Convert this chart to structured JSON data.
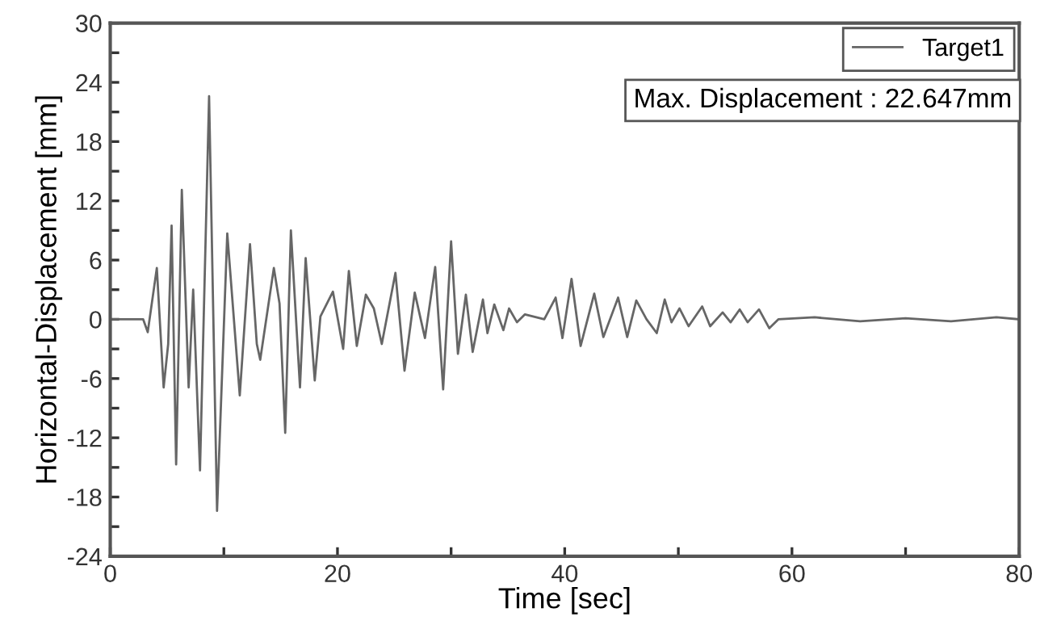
{
  "chart_data": {
    "type": "line",
    "xlabel": "Time [sec]",
    "ylabel": "Horizontal-Displacement [mm]",
    "xlim": [
      0,
      80
    ],
    "ylim": [
      -24,
      30
    ],
    "xticks": [
      0,
      {
        "value": 10,
        "label": null
      },
      20,
      {
        "value": 30,
        "label": null
      },
      40,
      {
        "value": 50,
        "label": null
      },
      60,
      {
        "value": 70,
        "label": null
      },
      80
    ],
    "yticks": [
      -24,
      {
        "value": -21,
        "label": null
      },
      -18,
      {
        "value": -15,
        "label": null
      },
      -12,
      {
        "value": -9,
        "label": null
      },
      -6,
      {
        "value": -3,
        "label": null
      },
      0,
      {
        "value": 3,
        "label": null
      },
      6,
      {
        "value": 9,
        "label": null
      },
      12,
      {
        "value": 15,
        "label": null
      },
      18,
      {
        "value": 21,
        "label": null
      },
      24,
      {
        "value": 27,
        "label": null
      },
      30
    ],
    "grid": false,
    "legend": "top right",
    "marker": "none",
    "line_style": "solid",
    "annotations": [
      "Max. Displacement : 22.647mm"
    ],
    "series": [
      {
        "name": "Target1",
        "color": "#666666",
        "x": [
          0,
          2.9,
          3.3,
          4.1,
          4.7,
          5.1,
          5.4,
          5.8,
          6.3,
          6.9,
          7.3,
          7.9,
          8.7,
          9.4,
          10.3,
          11.4,
          12.3,
          12.9,
          13.2,
          14.4,
          14.9,
          15.4,
          15.9,
          16.7,
          17.2,
          18.0,
          18.5,
          19.6,
          20.5,
          21.0,
          21.7,
          22.5,
          23.2,
          23.9,
          25.1,
          25.9,
          26.8,
          27.7,
          28.6,
          29.3,
          30.0,
          30.6,
          31.3,
          31.9,
          32.8,
          33.2,
          33.8,
          34.6,
          35.1,
          35.8,
          36.5,
          38.2,
          39.2,
          39.8,
          40.6,
          41.4,
          42.6,
          43.4,
          44.7,
          45.5,
          46.3,
          47.2,
          48.1,
          48.8,
          49.4,
          50.1,
          50.9,
          52.1,
          52.8,
          53.9,
          54.6,
          55.4,
          56.1,
          57.1,
          58.0,
          58.8,
          62,
          66,
          70,
          74,
          78,
          80
        ],
        "values": [
          0,
          0,
          -1.3,
          5.2,
          -6.9,
          -2.5,
          9.5,
          -14.7,
          13.1,
          -6.9,
          3,
          -15.3,
          22.6,
          -19.4,
          8.7,
          -7.7,
          7.6,
          -2.5,
          -4.1,
          5.2,
          1.6,
          -11.5,
          9,
          -6.9,
          6.2,
          -6.2,
          0.3,
          2.8,
          -3,
          4.9,
          -2.7,
          2.5,
          1.1,
          -2.5,
          4.7,
          -5.2,
          2.7,
          -1.9,
          5.3,
          -7.1,
          7.9,
          -3.5,
          2.5,
          -3.3,
          2,
          -1.4,
          1.5,
          -1.1,
          1.1,
          -0.3,
          0.5,
          0,
          2.2,
          -1.9,
          4.1,
          -2.7,
          2.6,
          -1.8,
          2.2,
          -1.8,
          1.9,
          0,
          -1.4,
          2,
          -0.3,
          1.1,
          -0.7,
          1.3,
          -0.7,
          0.7,
          -0.3,
          1,
          -0.3,
          1,
          -0.9,
          0,
          0.2,
          -0.2,
          0.1,
          -0.2,
          0.2,
          0
        ]
      }
    ]
  }
}
